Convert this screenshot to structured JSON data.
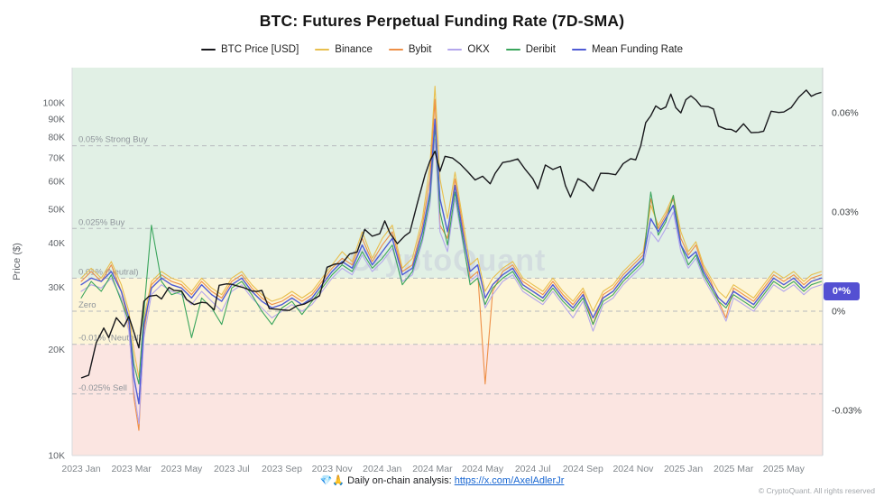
{
  "title": "BTC: Futures Perpetual Funding Rate (7D-SMA)",
  "watermark": "CryptoQuant",
  "badge": {
    "label": "0*%",
    "color": "#5450d2",
    "value": 0.006
  },
  "footer": {
    "emoji": "💎🙏",
    "prefix": "Daily on-chain analysis:",
    "link": "https://x.com/AxelAdlerJr",
    "copyright": "© CryptoQuant. All rights reserved"
  },
  "legend": {
    "items": [
      {
        "key": "price",
        "label": "BTC Price [USD]",
        "color": "#17171b"
      },
      {
        "key": "binance",
        "label": "Binance",
        "color": "#e8bf4e"
      },
      {
        "key": "bybit",
        "label": "Bybit",
        "color": "#ee8f47"
      },
      {
        "key": "okx",
        "label": "OKX",
        "color": "#b3a6ec"
      },
      {
        "key": "deribit",
        "label": "Deribit",
        "color": "#3aa55c"
      },
      {
        "key": "mean",
        "label": "Mean Funding Rate",
        "color": "#4f5bd5"
      }
    ]
  },
  "axes": {
    "y_left_label": "Price ($)",
    "price_ticks": [
      {
        "value": 100,
        "label": "100K"
      },
      {
        "value": 90,
        "label": "90K"
      },
      {
        "value": 80,
        "label": "80K"
      },
      {
        "value": 70,
        "label": "70K"
      },
      {
        "value": 60,
        "label": "60K"
      },
      {
        "value": 50,
        "label": "50K"
      },
      {
        "value": 40,
        "label": "40K"
      },
      {
        "value": 30,
        "label": "30K"
      },
      {
        "value": 20,
        "label": "20K"
      },
      {
        "value": 10,
        "label": "10K"
      }
    ],
    "funding_ticks": [
      {
        "value": 0.06,
        "label": "0.06%"
      },
      {
        "value": 0.03,
        "label": "0.03%"
      },
      {
        "value": 0,
        "label": "0%"
      },
      {
        "value": -0.03,
        "label": "-0.03%"
      }
    ],
    "x_ticks": [
      {
        "m": 0,
        "label": "2023 Jan"
      },
      {
        "m": 2,
        "label": "2023 Mar"
      },
      {
        "m": 4,
        "label": "2023 May"
      },
      {
        "m": 6,
        "label": "2023 Jul"
      },
      {
        "m": 8,
        "label": "2023 Sep"
      },
      {
        "m": 10,
        "label": "2023 Nov"
      },
      {
        "m": 12,
        "label": "2024 Jan"
      },
      {
        "m": 14,
        "label": "2024 Mar"
      },
      {
        "m": 16,
        "label": "2024 May"
      },
      {
        "m": 18,
        "label": "2024 Jul"
      },
      {
        "m": 20,
        "label": "2024 Sep"
      },
      {
        "m": 22,
        "label": "2024 Nov"
      },
      {
        "m": 24,
        "label": "2025 Jan"
      },
      {
        "m": 26,
        "label": "2025 Mar"
      },
      {
        "m": 28,
        "label": "2025 May"
      }
    ]
  },
  "thresholds": [
    {
      "value": 0.05,
      "label": "0.05% Strong Buy"
    },
    {
      "value": 0.025,
      "label": "0.025% Buy"
    },
    {
      "value": 0.01,
      "label": "0.01% (Neutral)"
    },
    {
      "value": 0,
      "label": "Zero"
    },
    {
      "value": -0.01,
      "label": "-0.01% (Neutral)"
    },
    {
      "value": -0.025,
      "label": "-0.025% Sell"
    }
  ],
  "zones": [
    {
      "from": 0.01,
      "to": "top",
      "color": "#e1f0e5"
    },
    {
      "from": -0.01,
      "to": 0.01,
      "color": "#fdf5d8"
    },
    {
      "from": "bottom",
      "to": -0.01,
      "color": "#fbe5e1"
    }
  ],
  "chart_data": {
    "type": "line",
    "title": "BTC: Futures Perpetual Funding Rate (7D-SMA)",
    "x_unit": "months since 2023-01",
    "price_axis": {
      "scale": "log",
      "min_k": 10,
      "max_k": 126
    },
    "funding_axis": {
      "scale": "linear",
      "min": -0.0436,
      "max": 0.0736
    },
    "btc_price_usd_k": [
      [
        0,
        16.6
      ],
      [
        0.3,
        16.9
      ],
      [
        0.6,
        20.9
      ],
      [
        0.9,
        23.0
      ],
      [
        1.1,
        21.6
      ],
      [
        1.4,
        24.6
      ],
      [
        1.7,
        23.2
      ],
      [
        1.9,
        24.8
      ],
      [
        2.1,
        22.4
      ],
      [
        2.3,
        20.2
      ],
      [
        2.5,
        27.4
      ],
      [
        2.7,
        28.3
      ],
      [
        3.0,
        28.5
      ],
      [
        3.2,
        27.8
      ],
      [
        3.5,
        30.0
      ],
      [
        3.7,
        29.4
      ],
      [
        4.0,
        29.3
      ],
      [
        4.2,
        27.7
      ],
      [
        4.5,
        26.8
      ],
      [
        4.8,
        27.2
      ],
      [
        5.0,
        27.1
      ],
      [
        5.3,
        25.9
      ],
      [
        5.5,
        30.4
      ],
      [
        5.8,
        30.7
      ],
      [
        6.0,
        30.6
      ],
      [
        6.2,
        30.3
      ],
      [
        6.5,
        29.9
      ],
      [
        6.8,
        29.3
      ],
      [
        7.0,
        29.2
      ],
      [
        7.2,
        29.4
      ],
      [
        7.5,
        26.1
      ],
      [
        7.8,
        26.0
      ],
      [
        8.0,
        25.9
      ],
      [
        8.3,
        25.8
      ],
      [
        8.6,
        26.6
      ],
      [
        8.9,
        26.9
      ],
      [
        9.2,
        27.6
      ],
      [
        9.5,
        28.4
      ],
      [
        9.8,
        34.2
      ],
      [
        10.1,
        34.9
      ],
      [
        10.4,
        35.1
      ],
      [
        10.7,
        37.3
      ],
      [
        11.0,
        37.8
      ],
      [
        11.3,
        43.8
      ],
      [
        11.6,
        41.9
      ],
      [
        11.9,
        42.6
      ],
      [
        12.1,
        46.3
      ],
      [
        12.3,
        42.8
      ],
      [
        12.6,
        39.9
      ],
      [
        12.9,
        42.0
      ],
      [
        13.1,
        43.0
      ],
      [
        13.4,
        52.0
      ],
      [
        13.7,
        62.4
      ],
      [
        13.9,
        68.5
      ],
      [
        14.1,
        73.0
      ],
      [
        14.3,
        64.0
      ],
      [
        14.5,
        70.6
      ],
      [
        14.8,
        69.8
      ],
      [
        15.1,
        67.2
      ],
      [
        15.4,
        63.9
      ],
      [
        15.7,
        60.5
      ],
      [
        16.0,
        62.0
      ],
      [
        16.3,
        59.0
      ],
      [
        16.5,
        63.2
      ],
      [
        16.8,
        67.8
      ],
      [
        17.1,
        68.4
      ],
      [
        17.4,
        69.4
      ],
      [
        17.7,
        64.8
      ],
      [
        18.0,
        61.0
      ],
      [
        18.2,
        57.1
      ],
      [
        18.5,
        66.7
      ],
      [
        18.8,
        64.8
      ],
      [
        19.1,
        66.1
      ],
      [
        19.3,
        58.3
      ],
      [
        19.5,
        54.1
      ],
      [
        19.8,
        61.0
      ],
      [
        20.1,
        59.3
      ],
      [
        20.4,
        56.3
      ],
      [
        20.7,
        63.2
      ],
      [
        21.0,
        63.1
      ],
      [
        21.3,
        62.6
      ],
      [
        21.6,
        67.3
      ],
      [
        21.9,
        69.5
      ],
      [
        22.1,
        69.0
      ],
      [
        22.3,
        75.6
      ],
      [
        22.5,
        88.0
      ],
      [
        22.7,
        92.0
      ],
      [
        22.9,
        98.1
      ],
      [
        23.1,
        95.9
      ],
      [
        23.3,
        97.4
      ],
      [
        23.5,
        106.0
      ],
      [
        23.7,
        97.0
      ],
      [
        23.9,
        93.8
      ],
      [
        24.1,
        102.2
      ],
      [
        24.3,
        104.8
      ],
      [
        24.5,
        102.0
      ],
      [
        24.7,
        98.0
      ],
      [
        25.0,
        97.6
      ],
      [
        25.2,
        96.2
      ],
      [
        25.4,
        86.0
      ],
      [
        25.7,
        84.3
      ],
      [
        25.9,
        84.2
      ],
      [
        26.1,
        82.8
      ],
      [
        26.4,
        87.3
      ],
      [
        26.7,
        82.4
      ],
      [
        27.0,
        82.6
      ],
      [
        27.2,
        83.2
      ],
      [
        27.5,
        94.8
      ],
      [
        27.8,
        94.0
      ],
      [
        28.0,
        94.3
      ],
      [
        28.3,
        97.1
      ],
      [
        28.6,
        103.9
      ],
      [
        28.9,
        108.8
      ],
      [
        29.1,
        104.5
      ],
      [
        29.3,
        106.2
      ],
      [
        29.5,
        107.2
      ]
    ],
    "funding_x": [
      0,
      0.4,
      0.8,
      1.2,
      1.6,
      1.9,
      2.1,
      2.3,
      2.5,
      2.8,
      3.2,
      3.6,
      4,
      4.4,
      4.8,
      5.2,
      5.6,
      6,
      6.4,
      6.8,
      7.2,
      7.6,
      8,
      8.4,
      8.8,
      9.2,
      9.6,
      10,
      10.4,
      10.8,
      11.2,
      11.6,
      12,
      12.4,
      12.8,
      13.2,
      13.6,
      13.9,
      14.1,
      14.3,
      14.6,
      14.9,
      15.2,
      15.5,
      15.8,
      16.1,
      16.4,
      16.8,
      17.2,
      17.6,
      18,
      18.4,
      18.8,
      19.2,
      19.6,
      20,
      20.4,
      20.8,
      21.2,
      21.6,
      22,
      22.4,
      22.7,
      23,
      23.3,
      23.6,
      23.9,
      24.2,
      24.5,
      24.8,
      25.1,
      25.4,
      25.7,
      26,
      26.4,
      26.8,
      27.2,
      27.6,
      28,
      28.4,
      28.8,
      29.1,
      29.5
    ],
    "funding_series": [
      {
        "name": "Binance",
        "color": "#e8bf4e",
        "values": [
          0.01,
          0.013,
          0.01,
          0.015,
          0.008,
          0.0,
          -0.012,
          -0.02,
          -0.002,
          0.009,
          0.012,
          0.01,
          0.009,
          0.006,
          0.01,
          0.007,
          0.005,
          0.01,
          0.012,
          0.008,
          0.005,
          0.003,
          0.004,
          0.006,
          0.004,
          0.006,
          0.01,
          0.014,
          0.018,
          0.015,
          0.024,
          0.016,
          0.022,
          0.026,
          0.013,
          0.016,
          0.028,
          0.044,
          0.068,
          0.04,
          0.028,
          0.042,
          0.028,
          0.014,
          0.016,
          0.006,
          0.01,
          0.013,
          0.015,
          0.01,
          0.008,
          0.006,
          0.01,
          0.006,
          0.003,
          0.007,
          0.0,
          0.006,
          0.008,
          0.012,
          0.015,
          0.018,
          0.032,
          0.026,
          0.03,
          0.035,
          0.024,
          0.018,
          0.021,
          0.014,
          0.01,
          0.006,
          0.004,
          0.008,
          0.006,
          0.004,
          0.008,
          0.012,
          0.01,
          0.012,
          0.009,
          0.011,
          0.012
        ]
      },
      {
        "name": "Bybit",
        "color": "#ee8f47",
        "values": [
          0.009,
          0.012,
          0.009,
          0.014,
          0.006,
          -0.004,
          -0.026,
          -0.036,
          -0.006,
          0.008,
          0.011,
          0.009,
          0.008,
          0.005,
          0.009,
          0.006,
          0.004,
          0.009,
          0.011,
          0.007,
          0.004,
          0.002,
          0.003,
          0.005,
          0.003,
          0.005,
          0.009,
          0.013,
          0.016,
          0.014,
          0.022,
          0.015,
          0.02,
          0.024,
          0.012,
          0.014,
          0.026,
          0.04,
          0.064,
          0.026,
          0.022,
          0.04,
          0.026,
          0.01,
          0.012,
          -0.022,
          0.006,
          0.012,
          0.014,
          0.009,
          0.007,
          0.005,
          0.009,
          0.005,
          0.002,
          0.006,
          -0.004,
          0.005,
          0.007,
          0.011,
          0.014,
          0.017,
          0.034,
          0.025,
          0.029,
          0.034,
          0.022,
          0.017,
          0.02,
          0.013,
          0.009,
          0.003,
          -0.002,
          0.007,
          0.005,
          0.003,
          0.007,
          0.011,
          0.009,
          0.011,
          0.008,
          0.01,
          0.011
        ]
      },
      {
        "name": "OKX",
        "color": "#b3a6ec",
        "values": [
          0.006,
          0.008,
          0.007,
          0.01,
          0.004,
          -0.006,
          -0.024,
          -0.034,
          -0.008,
          0.005,
          0.008,
          0.006,
          0.005,
          0.002,
          0.006,
          0.003,
          0.0,
          0.006,
          0.008,
          0.004,
          0.001,
          -0.002,
          0.0,
          0.002,
          0.0,
          0.002,
          0.006,
          0.01,
          0.013,
          0.011,
          0.017,
          0.012,
          0.015,
          0.019,
          0.009,
          0.011,
          0.021,
          0.032,
          0.052,
          0.024,
          0.018,
          0.034,
          0.021,
          0.009,
          0.011,
          0.001,
          0.005,
          0.009,
          0.011,
          0.006,
          0.004,
          0.002,
          0.006,
          0.002,
          -0.002,
          0.003,
          -0.006,
          0.002,
          0.004,
          0.008,
          0.011,
          0.014,
          0.024,
          0.021,
          0.025,
          0.03,
          0.018,
          0.013,
          0.016,
          0.01,
          0.006,
          0.002,
          -0.003,
          0.004,
          0.002,
          0.0,
          0.004,
          0.008,
          0.006,
          0.008,
          0.005,
          0.007,
          0.008
        ]
      },
      {
        "name": "Deribit",
        "color": "#3aa55c",
        "values": [
          0.004,
          0.009,
          0.006,
          0.011,
          0.003,
          -0.003,
          -0.016,
          -0.022,
          0.0,
          0.026,
          0.009,
          0.005,
          0.006,
          -0.008,
          0.004,
          0.001,
          -0.004,
          0.007,
          0.009,
          0.005,
          0.0,
          -0.004,
          0.001,
          0.003,
          -0.001,
          0.003,
          0.007,
          0.011,
          0.014,
          0.012,
          0.018,
          0.013,
          0.016,
          0.02,
          0.008,
          0.012,
          0.022,
          0.034,
          0.056,
          0.03,
          0.02,
          0.036,
          0.022,
          0.008,
          0.01,
          0.002,
          0.007,
          0.01,
          0.012,
          0.007,
          0.005,
          0.003,
          0.007,
          0.003,
          0.0,
          0.004,
          -0.004,
          0.003,
          0.005,
          0.009,
          0.012,
          0.015,
          0.036,
          0.023,
          0.027,
          0.035,
          0.02,
          0.014,
          0.017,
          0.011,
          0.007,
          0.003,
          0.001,
          0.005,
          0.003,
          0.001,
          0.005,
          0.009,
          0.007,
          0.009,
          0.006,
          0.008,
          0.009
        ]
      },
      {
        "name": "Mean Funding Rate",
        "color": "#4f5bd5",
        "values": [
          0.008,
          0.01,
          0.009,
          0.012,
          0.006,
          -0.002,
          -0.02,
          -0.028,
          -0.004,
          0.007,
          0.01,
          0.008,
          0.007,
          0.004,
          0.008,
          0.005,
          0.003,
          0.008,
          0.01,
          0.006,
          0.003,
          0.001,
          0.002,
          0.004,
          0.002,
          0.004,
          0.008,
          0.012,
          0.015,
          0.013,
          0.02,
          0.014,
          0.018,
          0.022,
          0.011,
          0.013,
          0.024,
          0.036,
          0.058,
          0.034,
          0.024,
          0.038,
          0.024,
          0.012,
          0.014,
          0.004,
          0.008,
          0.011,
          0.013,
          0.008,
          0.006,
          0.004,
          0.008,
          0.004,
          0.001,
          0.005,
          -0.002,
          0.004,
          0.006,
          0.01,
          0.013,
          0.016,
          0.028,
          0.024,
          0.028,
          0.032,
          0.02,
          0.016,
          0.018,
          0.012,
          0.008,
          0.004,
          0.002,
          0.006,
          0.004,
          0.002,
          0.006,
          0.01,
          0.008,
          0.01,
          0.007,
          0.009,
          0.01
        ]
      }
    ]
  }
}
